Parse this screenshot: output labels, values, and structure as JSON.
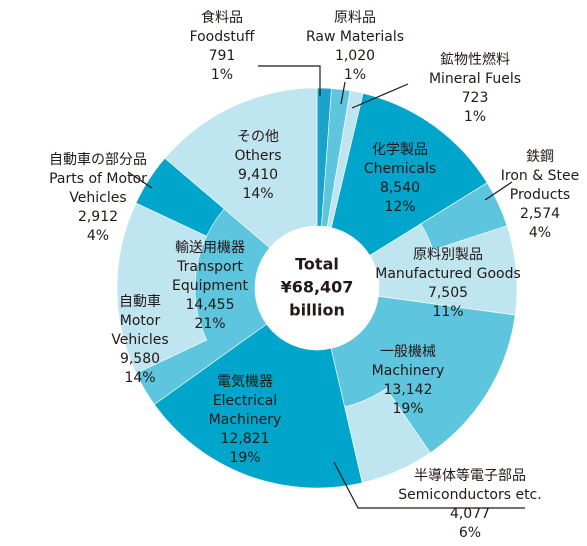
{
  "chart_data": {
    "type": "donut",
    "center_label": [
      "Total",
      "¥68,407",
      "billion"
    ],
    "items": [
      {
        "name_ja": "食料品",
        "name_en": [
          "Foodstuff"
        ],
        "value": 791,
        "value_label": "791",
        "percent_label": "1%",
        "color": "#1aa2c9"
      },
      {
        "name_ja": "原料品",
        "name_en": [
          "Raw Materials"
        ],
        "value": 1020,
        "value_label": "1,020",
        "percent_label": "1%",
        "color": "#5ec5de"
      },
      {
        "name_ja": "鉱物性燃料",
        "name_en": [
          "Mineral Fuels"
        ],
        "value": 723,
        "value_label": "723",
        "percent_label": "1%",
        "color": "#bfe6f0"
      },
      {
        "name_ja": "化学製品",
        "name_en": [
          "Chemicals"
        ],
        "value": 8540,
        "value_label": "8,540",
        "percent_label": "12%",
        "color": "#00a5cb"
      },
      {
        "name_ja": "原料別製品",
        "name_en": [
          "Manufactured Goods"
        ],
        "value": 7505,
        "value_label": "7,505",
        "percent_label": "11%",
        "color": "#bfe6f0",
        "children_align": "start",
        "children": [
          {
            "name_ja": "鉄鋼",
            "name_en": [
              "Iron & Stee",
              "Products"
            ],
            "value": 2574,
            "value_label": "2,574",
            "percent_label": "4%",
            "color": "#5ec5de"
          }
        ]
      },
      {
        "name_ja": "一般機械",
        "name_en": [
          "Machinery"
        ],
        "value": 13142,
        "value_label": "13,142",
        "percent_label": "19%",
        "color": "#5ec5de",
        "children_align": "end",
        "children": [
          {
            "name_ja": "半導体等電子部品",
            "name_en": [
              "Semiconductors etc."
            ],
            "value": 4077,
            "value_label": "4,077",
            "percent_label": "6%",
            "color": "#bfe6f0"
          }
        ]
      },
      {
        "name_ja": "電気機器",
        "name_en": [
          "Electrical",
          "Machinery"
        ],
        "value": 12821,
        "value_label": "12,821",
        "percent_label": "19%",
        "color": "#00a5cb"
      },
      {
        "name_ja": "輸送用機器",
        "name_en": [
          "Transport",
          "Equipment"
        ],
        "value": 14455,
        "value_label": "14,455",
        "percent_label": "21%",
        "color": "#5ec5de",
        "children_align": "end",
        "children": [
          {
            "name_ja": "自動車",
            "name_en": [
              "Motor",
              "Vehicles"
            ],
            "value": 9580,
            "value_label": "9,580",
            "percent_label": "14%",
            "color": "#bfe6f0"
          },
          {
            "name_ja": "自動車の部分品",
            "name_en": [
              "Parts of Motor",
              "Vehicles"
            ],
            "value": 2912,
            "value_label": "2,912",
            "percent_label": "4%",
            "color": "#00a5cb"
          }
        ]
      },
      {
        "name_ja": "その他",
        "name_en": [
          "Others"
        ],
        "value": 9410,
        "value_label": "9,410",
        "percent_label": "14%",
        "color": "#bfe6f0"
      }
    ]
  }
}
